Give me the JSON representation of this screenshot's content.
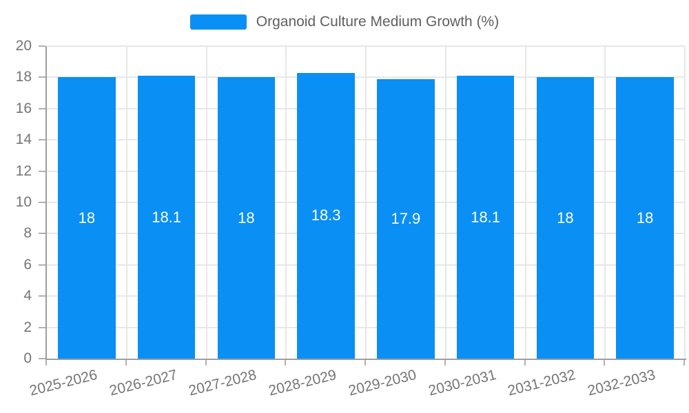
{
  "chart_data": {
    "type": "bar",
    "legend": "Organoid Culture Medium Growth (%)",
    "title": "",
    "xlabel": "",
    "ylabel": "",
    "categories": [
      "2025-2026",
      "2026-2027",
      "2027-2028",
      "2028-2029",
      "2029-2030",
      "2030-2031",
      "2031-2032",
      "2032-2033"
    ],
    "values": [
      18,
      18.1,
      18,
      18.3,
      17.9,
      18.1,
      18,
      18
    ],
    "ylim": [
      0,
      20
    ],
    "yticks": [
      0,
      2,
      4,
      6,
      8,
      10,
      12,
      14,
      16,
      18,
      20
    ],
    "grid": true,
    "legend_position": "top-center",
    "colors": {
      "bar": "#0a8ff5",
      "grid_line": "#e7e7e7",
      "axis_line": "#9e9e9e",
      "tick_mark": "#b0b0b0",
      "axis_label_text": "#757575",
      "legend_text": "#5f5f5f",
      "bar_value_text": "#ffffff",
      "background": "#ffffff"
    }
  }
}
